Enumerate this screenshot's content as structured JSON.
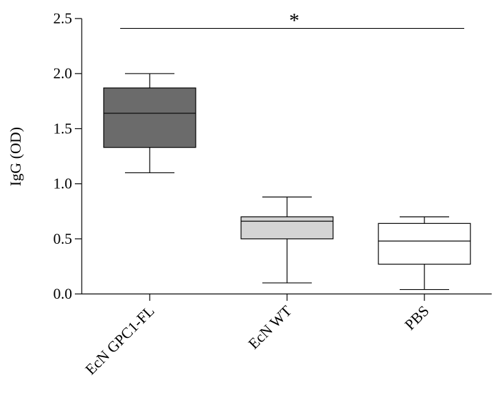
{
  "chart_data": {
    "type": "box",
    "title": "",
    "xlabel": "",
    "ylabel": "IgG (OD)",
    "ylim": [
      0,
      2.5
    ],
    "yticks": [
      0.0,
      0.5,
      1.0,
      1.5,
      2.0,
      2.5
    ],
    "ytick_labels": [
      "0.0",
      "0.5",
      "1.0",
      "1.5",
      "2.0",
      "2.5"
    ],
    "categories": [
      "EcN GPC1-FL",
      "EcN WT",
      "PBS"
    ],
    "boxes": [
      {
        "category": "EcN GPC1-FL",
        "min": 1.1,
        "q1": 1.33,
        "median": 1.64,
        "q3": 1.87,
        "max": 2.0,
        "fill": "#6b6b6b"
      },
      {
        "category": "EcN WT",
        "min": 0.1,
        "q1": 0.5,
        "median": 0.66,
        "q3": 0.7,
        "max": 0.88,
        "fill": "#d4d4d4"
      },
      {
        "category": "PBS",
        "min": 0.04,
        "q1": 0.27,
        "median": 0.48,
        "q3": 0.64,
        "max": 0.7,
        "fill": "#ffffff"
      }
    ],
    "annotations": [
      {
        "text": "*",
        "from_category": "EcN GPC1-FL",
        "to_category": "PBS",
        "y": 2.41
      }
    ],
    "grid": false,
    "legend": "none"
  }
}
